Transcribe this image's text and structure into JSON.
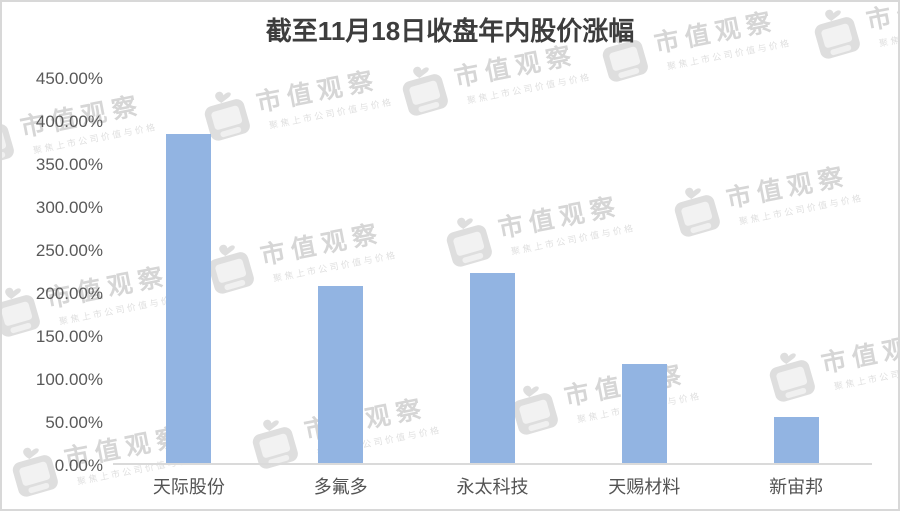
{
  "page": {
    "background": "#ffffff",
    "border_color": "#d8d8d8"
  },
  "chart_data": {
    "type": "bar",
    "title": "截至11月18日收盘年内股价涨幅",
    "categories": [
      "天际股份",
      "多氟多",
      "永太科技",
      "天赐材料",
      "新宙邦"
    ],
    "values": [
      385,
      208,
      223,
      117,
      55
    ],
    "unit": "%",
    "xlabel": "",
    "ylabel": "",
    "ylim": [
      0,
      450
    ],
    "ytick_step": 50,
    "ytick_labels": [
      "450.00%",
      "400.00%",
      "350.00%",
      "300.00%",
      "250.00%",
      "200.00%",
      "150.00%",
      "100.00%",
      "50.00%",
      "0.00%"
    ],
    "grid": false,
    "legend": null,
    "bar_color": "#92b4e2",
    "axis_text_color": "#595959",
    "title_color": "#3d3d3d",
    "axis_line_color": "#dadada"
  },
  "watermark": {
    "brand_text": "市值观察",
    "tagline_text": "聚焦上市公司价值与价格",
    "logo_icon": "tv-bird-logo",
    "color": "#d6d6d6"
  }
}
